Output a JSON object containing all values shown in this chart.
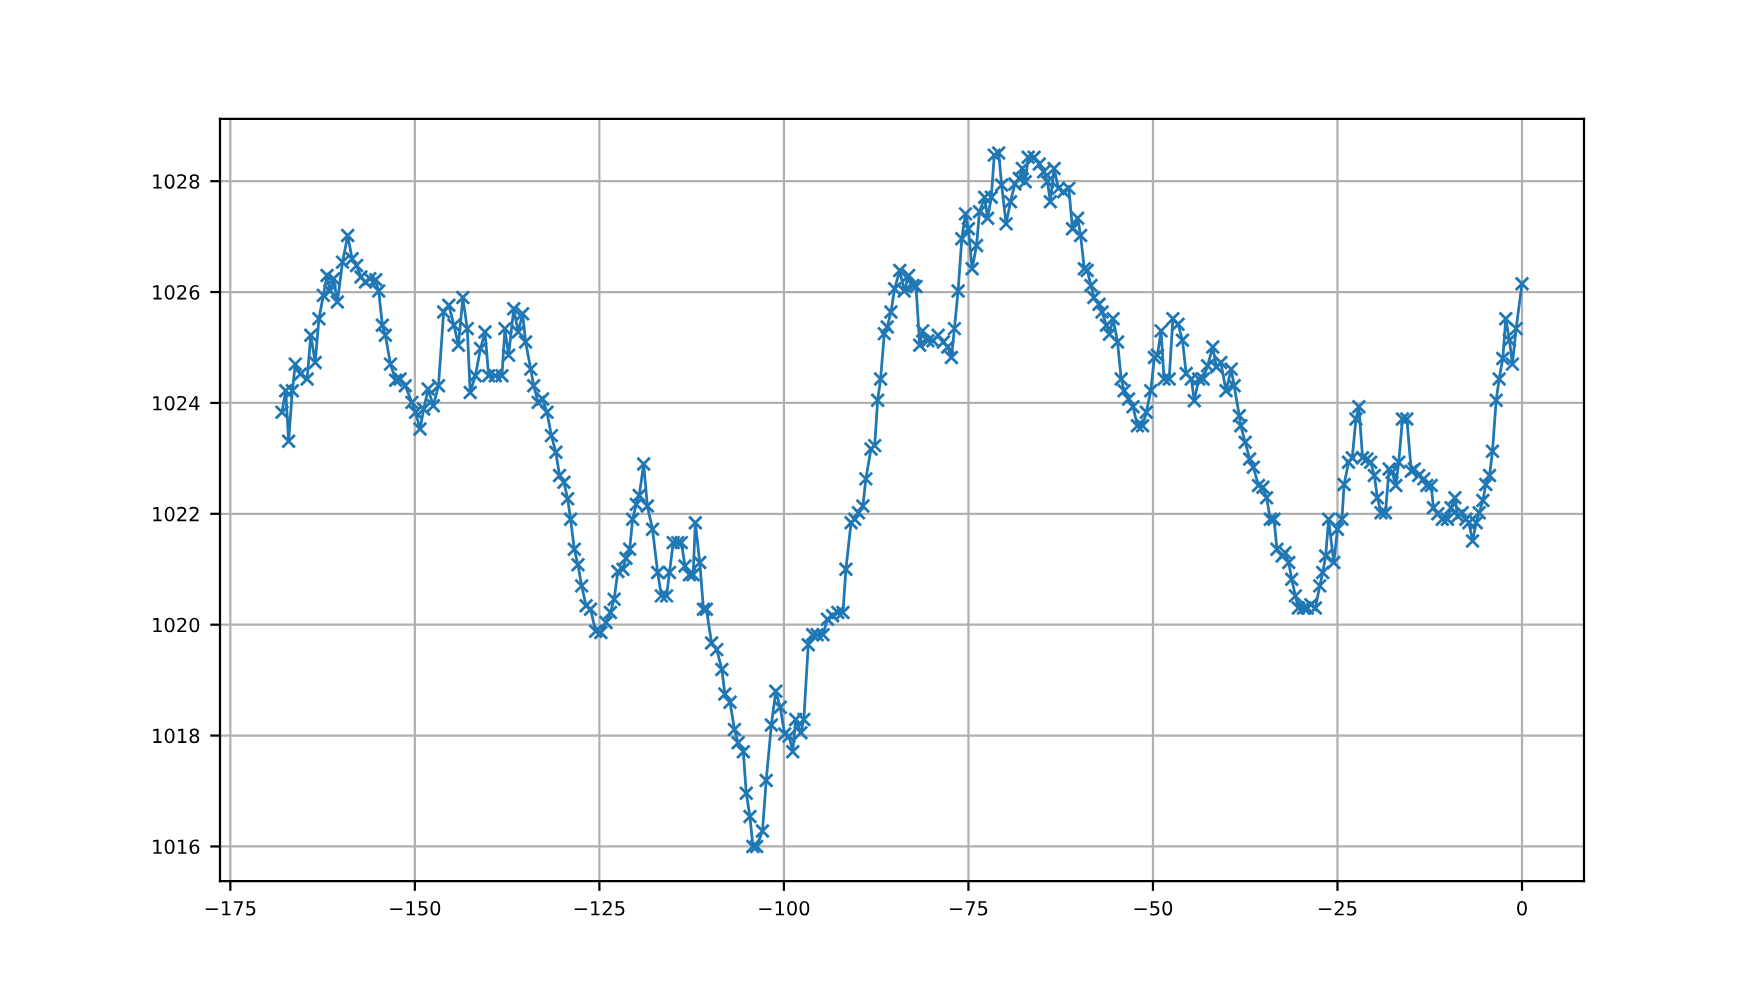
{
  "chart_data": {
    "type": "line",
    "marker": "cross",
    "line_style": "solid",
    "grid": true,
    "xlim": [
      -176.4,
      8.4
    ],
    "xticks": [
      {
        "value": -175,
        "label": "−175"
      },
      {
        "value": -150,
        "label": "−150"
      },
      {
        "value": -125,
        "label": "−125"
      },
      {
        "value": -100,
        "label": "−100"
      },
      {
        "value": -75,
        "label": "−75"
      },
      {
        "value": -50,
        "label": "−50"
      },
      {
        "value": -25,
        "label": "−25"
      },
      0
    ],
    "ylim": [
      1015.375,
      1029.125
    ],
    "yticks": [
      1016,
      1018,
      1020,
      1022,
      1024,
      1026,
      1028
    ],
    "series": [
      {
        "color": "#1f77b4",
        "x": [
          -168.0,
          -167.5,
          -167.1,
          -166.6,
          -166.2,
          -165.5,
          -164.6,
          -164.1,
          -163.5,
          -163.0,
          -162.4,
          -161.9,
          -161.5,
          -161.0,
          -160.5,
          -159.8,
          -159.1,
          -158.5,
          -157.9,
          -157.3,
          -156.7,
          -156.1,
          -155.3,
          -154.9,
          -154.4,
          -154.0,
          -153.3,
          -152.6,
          -152.0,
          -151.3,
          -150.4,
          -149.9,
          -149.3,
          -148.8,
          -148.2,
          -147.5,
          -146.8,
          -146.1,
          -145.4,
          -144.7,
          -144.1,
          -143.5,
          -142.9,
          -142.5,
          -141.8,
          -141.1,
          -140.5,
          -140.0,
          -139.1,
          -138.2,
          -137.8,
          -137.3,
          -136.6,
          -136.0,
          -135.4,
          -135.0,
          -134.3,
          -133.9,
          -133.3,
          -132.7,
          -132.1,
          -131.5,
          -130.9,
          -130.4,
          -129.8,
          -129.3,
          -128.9,
          -128.4,
          -127.9,
          -127.4,
          -126.8,
          -126.2,
          -125.5,
          -124.8,
          -124.1,
          -123.5,
          -123.0,
          -122.5,
          -121.8,
          -121.4,
          -120.9,
          -120.5,
          -120.0,
          -119.6,
          -119.0,
          -118.5,
          -117.8,
          -117.1,
          -116.6,
          -115.9,
          -115.5,
          -115.0,
          -114.4,
          -113.9,
          -113.4,
          -112.8,
          -112.3,
          -112.0,
          -111.4,
          -110.9,
          -110.5,
          -109.8,
          -109.1,
          -108.4,
          -108.0,
          -107.3,
          -106.7,
          -106.2,
          -105.5,
          -105.1,
          -104.6,
          -104.2,
          -103.7,
          -102.9,
          -102.4,
          -101.7,
          -101.1,
          -100.5,
          -99.9,
          -99.3,
          -98.8,
          -98.4,
          -97.7,
          -97.3,
          -96.7,
          -96.1,
          -95.5,
          -94.7,
          -94.1,
          -93.4,
          -92.7,
          -92.0,
          -91.6,
          -90.9,
          -90.4,
          -89.9,
          -89.3,
          -88.9,
          -88.2,
          -87.7,
          -87.3,
          -86.9,
          -86.4,
          -86.0,
          -85.5,
          -85.0,
          -84.3,
          -83.7,
          -83.1,
          -82.5,
          -82.1,
          -81.6,
          -81.2,
          -80.5,
          -79.8,
          -79.1,
          -78.4,
          -77.8,
          -77.3,
          -76.9,
          -76.4,
          -75.9,
          -75.4,
          -75.0,
          -74.5,
          -73.9,
          -73.5,
          -72.8,
          -72.4,
          -71.9,
          -71.5,
          -70.9,
          -70.5,
          -69.9,
          -69.3,
          -68.7,
          -68.1,
          -67.7,
          -67.3,
          -66.9,
          -66.1,
          -65.4,
          -64.8,
          -64.3,
          -63.9,
          -63.4,
          -62.8,
          -62.1,
          -61.4,
          -60.9,
          -60.2,
          -59.8,
          -59.3,
          -58.9,
          -58.4,
          -58.0,
          -57.3,
          -56.9,
          -56.3,
          -55.9,
          -55.4,
          -54.8,
          -54.3,
          -53.9,
          -53.3,
          -52.7,
          -52.1,
          -51.4,
          -50.9,
          -50.3,
          -49.8,
          -49.4,
          -48.9,
          -48.5,
          -47.8,
          -47.3,
          -46.6,
          -46.0,
          -45.5,
          -44.8,
          -44.4,
          -43.8,
          -43.2,
          -42.6,
          -41.9,
          -41.4,
          -40.8,
          -40.1,
          -39.4,
          -39.0,
          -38.3,
          -38.1,
          -37.5,
          -36.9,
          -36.4,
          -35.7,
          -35.1,
          -34.6,
          -34.1,
          -33.6,
          -33.2,
          -32.5,
          -32.1,
          -31.6,
          -31.2,
          -30.7,
          -30.3,
          -29.6,
          -29.1,
          -28.6,
          -28.0,
          -27.4,
          -27.0,
          -26.6,
          -26.2,
          -25.5,
          -25.0,
          -24.4,
          -24.1,
          -23.5,
          -23.0,
          -22.5,
          -22.1,
          -21.6,
          -21.0,
          -20.5,
          -20.0,
          -19.6,
          -19.1,
          -18.5,
          -18.0,
          -17.6,
          -17.1,
          -16.7,
          -16.2,
          -15.6,
          -15.0,
          -14.6,
          -14.0,
          -13.3,
          -12.9,
          -12.3,
          -12.0,
          -11.4,
          -10.8,
          -10.1,
          -9.6,
          -9.1,
          -8.7,
          -8.1,
          -7.6,
          -7.2,
          -6.7,
          -6.2,
          -5.8,
          -5.3,
          -4.9,
          -4.4,
          -4.0,
          -3.5,
          -3.1,
          -2.6,
          -2.2,
          -1.7,
          -1.3,
          -0.8,
          0.0
        ],
        "values": [
          1023.83,
          1024.22,
          1023.31,
          1024.22,
          1024.7,
          1024.52,
          1024.43,
          1025.22,
          1024.73,
          1025.52,
          1025.94,
          1026.3,
          1026.02,
          1026.24,
          1025.82,
          1026.54,
          1027.02,
          1026.6,
          1026.48,
          1026.27,
          1026.18,
          1026.24,
          1026.22,
          1026.02,
          1025.4,
          1025.22,
          1024.7,
          1024.41,
          1024.43,
          1024.31,
          1024.01,
          1023.83,
          1023.53,
          1023.89,
          1024.25,
          1023.95,
          1024.31,
          1025.64,
          1025.76,
          1025.4,
          1025.04,
          1025.9,
          1025.34,
          1024.19,
          1024.49,
          1024.98,
          1025.28,
          1024.49,
          1024.49,
          1024.49,
          1025.34,
          1024.86,
          1025.7,
          1025.28,
          1025.61,
          1025.1,
          1024.61,
          1024.31,
          1024.01,
          1024.07,
          1023.83,
          1023.41,
          1023.11,
          1022.69,
          1022.57,
          1022.27,
          1021.9,
          1021.36,
          1021.08,
          1020.7,
          1020.34,
          1020.28,
          1019.88,
          1019.86,
          1020.04,
          1020.22,
          1020.46,
          1020.96,
          1021.0,
          1021.2,
          1021.36,
          1021.9,
          1022.17,
          1022.33,
          1022.9,
          1022.14,
          1021.72,
          1020.94,
          1020.52,
          1020.52,
          1020.94,
          1021.48,
          1021.48,
          1021.48,
          1021.06,
          1020.9,
          1020.9,
          1021.84,
          1021.12,
          1020.28,
          1020.28,
          1019.67,
          1019.55,
          1019.19,
          1018.75,
          1018.6,
          1018.11,
          1017.87,
          1017.71,
          1016.96,
          1016.54,
          1016.0,
          1016.0,
          1016.28,
          1017.19,
          1018.19,
          1018.8,
          1018.51,
          1018.03,
          1017.99,
          1017.71,
          1018.29,
          1018.05,
          1018.29,
          1019.64,
          1019.82,
          1019.82,
          1019.82,
          1020.1,
          1020.16,
          1020.22,
          1020.22,
          1021.0,
          1021.84,
          1021.9,
          1022.02,
          1022.14,
          1022.63,
          1023.17,
          1023.23,
          1024.05,
          1024.43,
          1025.25,
          1025.37,
          1025.64,
          1026.06,
          1026.39,
          1026.02,
          1026.3,
          1026.12,
          1026.1,
          1025.04,
          1025.3,
          1025.12,
          1025.12,
          1025.22,
          1025.1,
          1025.01,
          1024.82,
          1025.34,
          1026.02,
          1026.96,
          1027.41,
          1027.14,
          1026.42,
          1026.84,
          1027.45,
          1027.71,
          1027.33,
          1027.71,
          1028.47,
          1028.51,
          1027.93,
          1027.23,
          1027.63,
          1027.95,
          1028.05,
          1028.23,
          1027.99,
          1028.43,
          1028.43,
          1028.31,
          1028.17,
          1027.99,
          1027.63,
          1028.23,
          1027.87,
          1027.81,
          1027.87,
          1027.14,
          1027.33,
          1027.02,
          1026.42,
          1026.39,
          1026.12,
          1025.9,
          1025.78,
          1025.64,
          1025.4,
          1025.24,
          1025.52,
          1025.1,
          1024.43,
          1024.22,
          1024.07,
          1023.93,
          1023.59,
          1023.59,
          1023.83,
          1024.22,
          1024.82,
          1024.86,
          1025.3,
          1024.43,
          1024.43,
          1025.52,
          1025.42,
          1025.13,
          1024.53,
          1024.43,
          1024.04,
          1024.43,
          1024.43,
          1024.67,
          1025.01,
          1024.65,
          1024.73,
          1024.22,
          1024.61,
          1024.31,
          1023.77,
          1023.59,
          1023.29,
          1022.99,
          1022.84,
          1022.51,
          1022.48,
          1022.29,
          1021.9,
          1021.9,
          1021.36,
          1021.24,
          1021.3,
          1021.12,
          1020.82,
          1020.52,
          1020.3,
          1020.3,
          1020.3,
          1020.36,
          1020.3,
          1020.7,
          1020.94,
          1021.24,
          1021.9,
          1021.12,
          1021.72,
          1021.9,
          1022.53,
          1022.93,
          1023.01,
          1023.71,
          1023.93,
          1023.01,
          1022.99,
          1022.93,
          1022.69,
          1022.29,
          1022.02,
          1022.02,
          1022.81,
          1022.75,
          1022.51,
          1022.93,
          1023.71,
          1023.71,
          1022.77,
          1022.81,
          1022.69,
          1022.63,
          1022.51,
          1022.51,
          1022.11,
          1022.0,
          1021.9,
          1021.9,
          1022.11,
          1022.29,
          1021.96,
          1022.02,
          1021.9,
          1021.84,
          1021.51,
          1021.84,
          1022.02,
          1022.24,
          1022.53,
          1022.69,
          1023.13,
          1024.05,
          1024.43,
          1024.8,
          1025.52,
          1025.13,
          1024.7,
          1025.34,
          1026.15
        ]
      }
    ]
  }
}
